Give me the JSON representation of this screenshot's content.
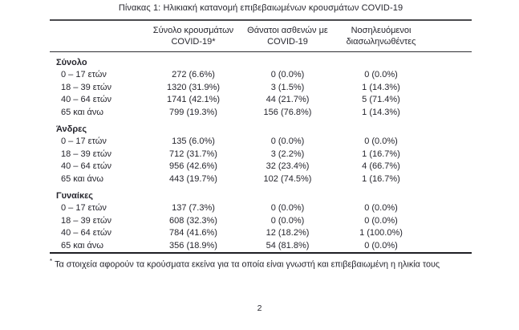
{
  "page": {
    "title": "Πίνακας 1: Ηλικιακή κατανομή επιβεβαιωμένων κρουσμάτων COVID-19",
    "footnote_marker": "*",
    "footnote": "Τα στοιχεία αφορούν τα κρούσματα εκείνα για τα οποία είναι γνωστή και επιβεβαιωμένη η ηλικία τους",
    "page_number": "2"
  },
  "colors": {
    "text": "#26262e",
    "rule_top": "#4a4a4e",
    "rule_bottom": "#1e1e24",
    "background": "#ffffff"
  },
  "table": {
    "headers": [
      {
        "line1": "Σύνολο κρουσμάτων",
        "line2": "COVID-19*"
      },
      {
        "line1": "Θάνατοι ασθενών με",
        "line2": "COVID-19"
      },
      {
        "line1": "Νοσηλευόμενοι",
        "line2": "διασωληνωθέντες"
      }
    ],
    "sections": [
      {
        "label": "Σύνολο",
        "rows": [
          {
            "age": "0 – 17 ετών",
            "cases": "272 (6.6%)",
            "deaths": "0 (0.0%)",
            "intubated": "0 (0.0%)"
          },
          {
            "age": "18 – 39 ετών",
            "cases": "1320 (31.9%)",
            "deaths": "3 (1.5%)",
            "intubated": "1 (14.3%)"
          },
          {
            "age": "40 – 64 ετών",
            "cases": "1741 (42.1%)",
            "deaths": "44 (21.7%)",
            "intubated": "5 (71.4%)"
          },
          {
            "age": "65 και άνω",
            "cases": "799 (19.3%)",
            "deaths": "156 (76.8%)",
            "intubated": "1 (14.3%)"
          }
        ]
      },
      {
        "label": "Άνδρες",
        "rows": [
          {
            "age": "0 – 17 ετών",
            "cases": "135 (6.0%)",
            "deaths": "0 (0.0%)",
            "intubated": "0 (0.0%)"
          },
          {
            "age": "18 – 39 ετών",
            "cases": "712 (31.7%)",
            "deaths": "3 (2.2%)",
            "intubated": "1 (16.7%)"
          },
          {
            "age": "40 – 64 ετών",
            "cases": "956 (42.6%)",
            "deaths": "32 (23.4%)",
            "intubated": "4 (66.7%)"
          },
          {
            "age": "65 και άνω",
            "cases": "443 (19.7%)",
            "deaths": "102 (74.5%)",
            "intubated": "1 (16.7%)"
          }
        ]
      },
      {
        "label": "Γυναίκες",
        "rows": [
          {
            "age": "0 – 17 ετών",
            "cases": "137 (7.3%)",
            "deaths": "0 (0.0%)",
            "intubated": "0 (0.0%)"
          },
          {
            "age": "18 – 39 ετών",
            "cases": "608 (32.3%)",
            "deaths": "0 (0.0%)",
            "intubated": "0 (0.0%)"
          },
          {
            "age": "40 – 64 ετών",
            "cases": "784 (41.6%)",
            "deaths": "12 (18.2%)",
            "intubated": "1 (100.0%)"
          },
          {
            "age": "65 και άνω",
            "cases": "356 (18.9%)",
            "deaths": "54 (81.8%)",
            "intubated": "0 (0.0%)"
          }
        ]
      }
    ]
  }
}
